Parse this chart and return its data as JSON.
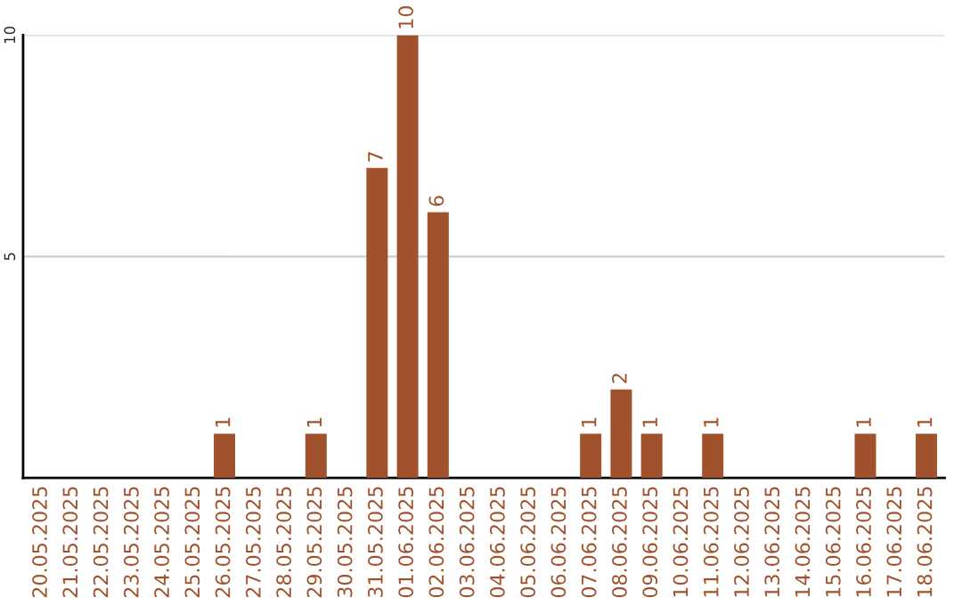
{
  "chart_data": {
    "type": "bar",
    "categories": [
      "20.05.2025",
      "21.05.2025",
      "22.05.2025",
      "23.05.2025",
      "24.05.2025",
      "25.05.2025",
      "26.05.2025",
      "27.05.2025",
      "28.05.2025",
      "29.05.2025",
      "30.05.2025",
      "31.05.2025",
      "01.06.2025",
      "02.06.2025",
      "03.06.2025",
      "04.06.2025",
      "05.06.2025",
      "06.06.2025",
      "07.06.2025",
      "08.06.2025",
      "09.06.2025",
      "10.06.2025",
      "11.06.2025",
      "12.06.2025",
      "13.06.2025",
      "14.06.2025",
      "15.06.2025",
      "16.06.2025",
      "17.06.2025",
      "18.06.2025"
    ],
    "values": [
      0,
      0,
      0,
      0,
      0,
      0,
      1,
      0,
      0,
      1,
      0,
      7,
      10,
      6,
      0,
      0,
      0,
      0,
      1,
      2,
      1,
      0,
      1,
      0,
      0,
      0,
      0,
      1,
      0,
      1
    ],
    "value_labels": [
      null,
      null,
      null,
      null,
      null,
      null,
      "1",
      null,
      null,
      "1",
      null,
      "7",
      "10",
      "6",
      null,
      null,
      null,
      null,
      "1",
      "2",
      "1",
      null,
      "1",
      null,
      null,
      null,
      null,
      "1",
      null,
      "1"
    ],
    "color": "#a0522d",
    "ylim": [
      0,
      10
    ],
    "yticks": [
      5,
      10
    ],
    "grid": "y",
    "legend": false
  }
}
